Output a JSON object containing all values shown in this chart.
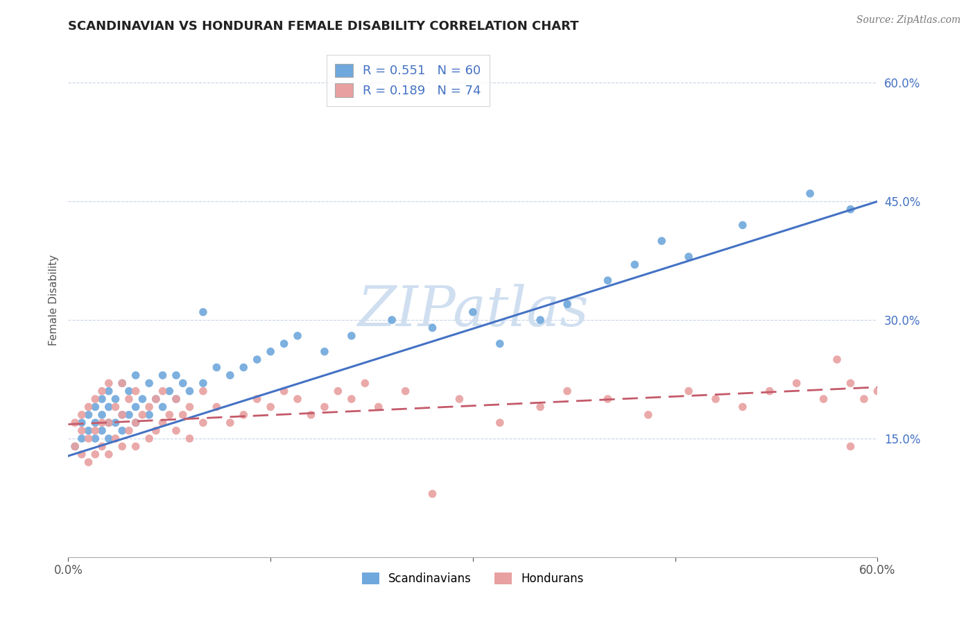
{
  "title": "SCANDINAVIAN VS HONDURAN FEMALE DISABILITY CORRELATION CHART",
  "source": "Source: ZipAtlas.com",
  "ylabel": "Female Disability",
  "yticks": [
    0.0,
    0.15,
    0.3,
    0.45,
    0.6
  ],
  "ytick_labels": [
    "",
    "15.0%",
    "30.0%",
    "45.0%",
    "60.0%"
  ],
  "xlim": [
    0.0,
    0.6
  ],
  "ylim": [
    0.0,
    0.65
  ],
  "scandinavian_R": 0.551,
  "scandinavian_N": 60,
  "honduran_R": 0.189,
  "honduran_N": 74,
  "scand_color": "#6fa8dc",
  "hond_color": "#e8a0a0",
  "scand_line_color": "#4472c4",
  "hond_line_color": "#c45a6a",
  "watermark_color": "#d0dff0",
  "legend_label_scand": "Scandinavians",
  "legend_label_hond": "Hondurans",
  "scand_points_x": [
    0.005,
    0.01,
    0.01,
    0.015,
    0.015,
    0.02,
    0.02,
    0.02,
    0.025,
    0.025,
    0.025,
    0.03,
    0.03,
    0.03,
    0.03,
    0.035,
    0.035,
    0.04,
    0.04,
    0.04,
    0.045,
    0.045,
    0.05,
    0.05,
    0.05,
    0.055,
    0.06,
    0.06,
    0.065,
    0.07,
    0.07,
    0.075,
    0.08,
    0.08,
    0.085,
    0.09,
    0.1,
    0.1,
    0.11,
    0.12,
    0.13,
    0.14,
    0.15,
    0.16,
    0.17,
    0.19,
    0.21,
    0.24,
    0.27,
    0.3,
    0.32,
    0.35,
    0.37,
    0.4,
    0.42,
    0.44,
    0.46,
    0.5,
    0.55,
    0.58
  ],
  "scand_points_y": [
    0.14,
    0.15,
    0.17,
    0.16,
    0.18,
    0.15,
    0.17,
    0.19,
    0.16,
    0.18,
    0.2,
    0.15,
    0.17,
    0.19,
    0.21,
    0.17,
    0.2,
    0.16,
    0.18,
    0.22,
    0.18,
    0.21,
    0.17,
    0.19,
    0.23,
    0.2,
    0.18,
    0.22,
    0.2,
    0.19,
    0.23,
    0.21,
    0.2,
    0.23,
    0.22,
    0.21,
    0.22,
    0.31,
    0.24,
    0.23,
    0.24,
    0.25,
    0.26,
    0.27,
    0.28,
    0.26,
    0.28,
    0.3,
    0.29,
    0.31,
    0.27,
    0.3,
    0.32,
    0.35,
    0.37,
    0.4,
    0.38,
    0.42,
    0.46,
    0.44
  ],
  "hond_points_x": [
    0.005,
    0.005,
    0.01,
    0.01,
    0.01,
    0.015,
    0.015,
    0.015,
    0.02,
    0.02,
    0.02,
    0.025,
    0.025,
    0.025,
    0.03,
    0.03,
    0.03,
    0.035,
    0.035,
    0.04,
    0.04,
    0.04,
    0.045,
    0.045,
    0.05,
    0.05,
    0.05,
    0.055,
    0.06,
    0.06,
    0.065,
    0.065,
    0.07,
    0.07,
    0.075,
    0.08,
    0.08,
    0.085,
    0.09,
    0.09,
    0.1,
    0.1,
    0.11,
    0.12,
    0.13,
    0.14,
    0.15,
    0.16,
    0.17,
    0.18,
    0.19,
    0.2,
    0.21,
    0.22,
    0.23,
    0.25,
    0.27,
    0.29,
    0.32,
    0.35,
    0.37,
    0.4,
    0.43,
    0.46,
    0.48,
    0.5,
    0.52,
    0.54,
    0.56,
    0.57,
    0.58,
    0.58,
    0.59,
    0.6
  ],
  "hond_points_y": [
    0.14,
    0.17,
    0.13,
    0.16,
    0.18,
    0.12,
    0.15,
    0.19,
    0.13,
    0.16,
    0.2,
    0.14,
    0.17,
    0.21,
    0.13,
    0.17,
    0.22,
    0.15,
    0.19,
    0.14,
    0.18,
    0.22,
    0.16,
    0.2,
    0.14,
    0.17,
    0.21,
    0.18,
    0.15,
    0.19,
    0.16,
    0.2,
    0.17,
    0.21,
    0.18,
    0.16,
    0.2,
    0.18,
    0.15,
    0.19,
    0.17,
    0.21,
    0.19,
    0.17,
    0.18,
    0.2,
    0.19,
    0.21,
    0.2,
    0.18,
    0.19,
    0.21,
    0.2,
    0.22,
    0.19,
    0.21,
    0.08,
    0.2,
    0.17,
    0.19,
    0.21,
    0.2,
    0.18,
    0.21,
    0.2,
    0.19,
    0.21,
    0.22,
    0.2,
    0.25,
    0.14,
    0.22,
    0.2,
    0.21
  ]
}
